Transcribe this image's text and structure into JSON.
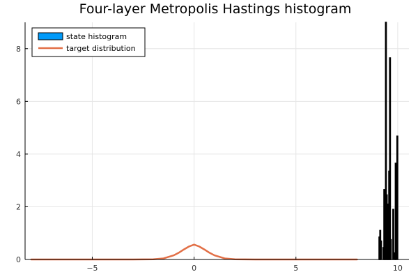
{
  "chart_data": {
    "type": "bar",
    "title": "Four-layer Metropolis Hastings histogram",
    "xlabel": "",
    "ylabel": "",
    "xlim": [
      -8.3,
      10.55
    ],
    "ylim": [
      0,
      9
    ],
    "x_ticks": [
      -5,
      0,
      5,
      10
    ],
    "y_ticks": [
      0,
      2,
      4,
      6,
      8
    ],
    "grid": true,
    "legend_position": "top-left",
    "series": [
      {
        "name": "state histogram",
        "kind": "histogram",
        "color": "#009af9",
        "edge_color": "#000000",
        "bin_width": 0.04,
        "bins": [
          {
            "x": 9.1,
            "value": 0.85
          },
          {
            "x": 9.14,
            "value": 1.1
          },
          {
            "x": 9.18,
            "value": 0.7
          },
          {
            "x": 9.3,
            "value": 0.45
          },
          {
            "x": 9.34,
            "value": 2.65
          },
          {
            "x": 9.38,
            "value": 2.25
          },
          {
            "x": 9.42,
            "value": 9.0
          },
          {
            "x": 9.46,
            "value": 2.45
          },
          {
            "x": 9.5,
            "value": 0.35
          },
          {
            "x": 9.54,
            "value": 2.1
          },
          {
            "x": 9.58,
            "value": 3.35
          },
          {
            "x": 9.62,
            "value": 7.65
          },
          {
            "x": 9.66,
            "value": 0.75
          },
          {
            "x": 9.78,
            "value": 1.9
          },
          {
            "x": 9.86,
            "value": 0.25
          },
          {
            "x": 9.9,
            "value": 3.65
          },
          {
            "x": 9.98,
            "value": 4.68
          }
        ]
      },
      {
        "name": "target distribution",
        "kind": "line",
        "color": "#e26f46",
        "x_range": [
          -8,
          8
        ],
        "x": [
          -8,
          -7,
          -6,
          -5,
          -4,
          -3,
          -2.5,
          -2,
          -1.5,
          -1,
          -0.75,
          -0.5,
          -0.25,
          0,
          0.25,
          0.5,
          0.75,
          1,
          1.5,
          2,
          2.5,
          3,
          4,
          5,
          6,
          7,
          8
        ],
        "values": [
          0,
          0,
          0,
          0,
          0,
          0.0003,
          0.002,
          0.008,
          0.04,
          0.157,
          0.257,
          0.381,
          0.493,
          0.564,
          0.493,
          0.381,
          0.257,
          0.157,
          0.04,
          0.008,
          0.002,
          0.0003,
          0,
          0,
          0,
          0,
          0
        ]
      }
    ]
  }
}
